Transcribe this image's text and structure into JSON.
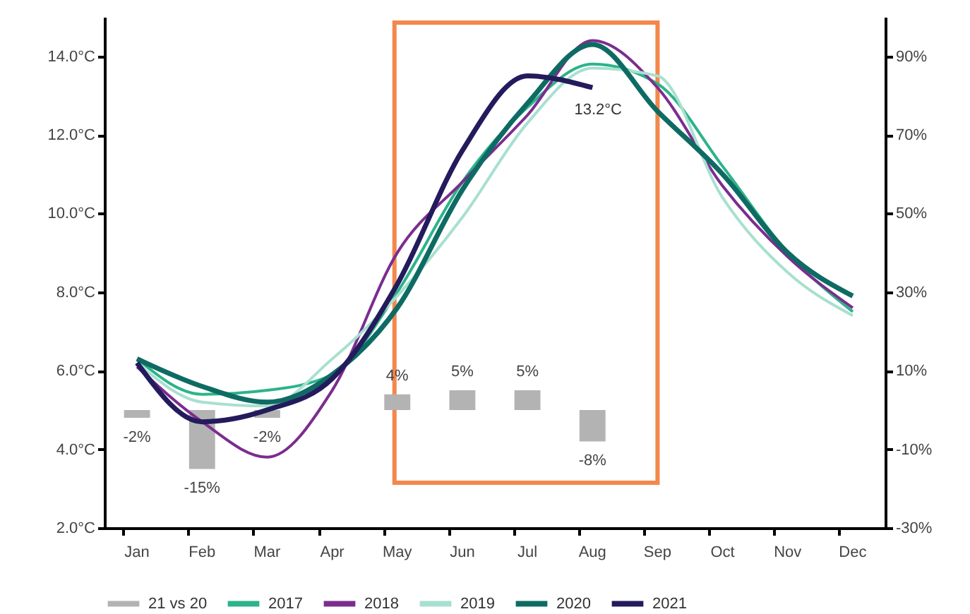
{
  "chart_data": {
    "type": "line",
    "categories": [
      "Jan",
      "Feb",
      "Mar",
      "Apr",
      "May",
      "Jun",
      "Jul",
      "Aug",
      "Sep",
      "Oct",
      "Nov",
      "Dec"
    ],
    "ylim": [
      2,
      15
    ],
    "yticks": [
      {
        "value": 2,
        "label": "2.0°C"
      },
      {
        "value": 4,
        "label": "4.0°C"
      },
      {
        "value": 6,
        "label": "6.0°C"
      },
      {
        "value": 8,
        "label": "8.0°C"
      },
      {
        "value": 10,
        "label": "10.0°C"
      },
      {
        "value": 12,
        "label": "12.0°C"
      },
      {
        "value": 14,
        "label": "14.0°C"
      }
    ],
    "y2lim": [
      -30,
      100
    ],
    "y2ticks": [
      {
        "value": -30,
        "label": "-30%"
      },
      {
        "value": -10,
        "label": "-10%"
      },
      {
        "value": 10,
        "label": "10%"
      },
      {
        "value": 30,
        "label": "30%"
      },
      {
        "value": 50,
        "label": "50%"
      },
      {
        "value": 70,
        "label": "70%"
      },
      {
        "value": 90,
        "label": "90%"
      }
    ],
    "series": [
      {
        "name": "21 vs 20",
        "type": "bar",
        "axis": "y2",
        "color": "#b3b3b3",
        "values": [
          -2,
          -15,
          -2,
          null,
          4,
          5,
          5,
          -8,
          null,
          null,
          null,
          null
        ],
        "value_labels": [
          "-2%",
          "-15%",
          "-2%",
          null,
          "4%",
          "5%",
          "5%",
          "-8%",
          null,
          null,
          null,
          null
        ]
      },
      {
        "name": "2017",
        "color": "#2db38a",
        "values": [
          6.3,
          5.4,
          5.5,
          5.9,
          8.0,
          10.8,
          12.7,
          13.8,
          13.3,
          11.2,
          9.0,
          7.5
        ]
      },
      {
        "name": "2018",
        "color": "#7b2d8e",
        "values": [
          6.1,
          4.7,
          3.8,
          5.5,
          9.0,
          10.8,
          12.5,
          14.4,
          13.2,
          10.7,
          8.9,
          7.6
        ]
      },
      {
        "name": "2019",
        "color": "#a8e0d0",
        "values": [
          6.2,
          5.2,
          5.1,
          6.3,
          7.9,
          9.9,
          12.3,
          13.7,
          13.5,
          10.4,
          8.5,
          7.4
        ]
      },
      {
        "name": "2020",
        "color": "#0e6b63",
        "values": [
          6.3,
          5.6,
          5.2,
          5.9,
          7.6,
          10.6,
          12.8,
          14.3,
          12.6,
          11.0,
          9.0,
          7.9
        ]
      },
      {
        "name": "2021",
        "color": "#231b5c",
        "values": [
          6.2,
          4.7,
          5.0,
          5.8,
          8.2,
          11.6,
          13.5,
          13.2,
          null,
          null,
          null,
          null
        ]
      }
    ],
    "annotations": [
      {
        "text": "13.2°C",
        "x": "Aug",
        "y": 13.2
      }
    ],
    "legend": "bottom",
    "grid": false
  }
}
